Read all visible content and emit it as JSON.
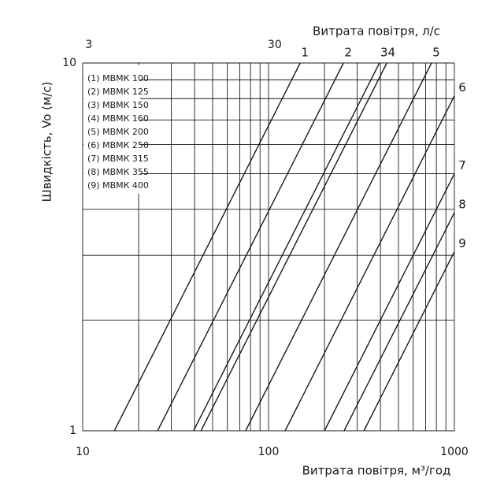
{
  "chart_data": {
    "type": "line",
    "xlabel": "Витрата повітря, м³/год",
    "ylabel": "Швидкість, Vo (м/с)",
    "x2label": "Витрата повітря, л/с",
    "xscale": "log",
    "yscale": "log",
    "xlim": [
      10,
      1000
    ],
    "ylim": [
      1,
      10
    ],
    "xticks": [
      10,
      100,
      1000
    ],
    "yticks": [
      1,
      10
    ],
    "xminor": [
      20,
      30,
      40,
      50,
      60,
      70,
      80,
      90,
      200,
      300,
      400,
      500,
      600,
      700,
      800,
      900
    ],
    "yminor": [
      2,
      3,
      4,
      5,
      6,
      7,
      8,
      9
    ],
    "x2lim": [
      2.78,
      277.8
    ],
    "x2ticks": [
      3,
      30
    ],
    "grid": true,
    "legend": [
      "(1) МВМК 100",
      "(2) МВМК 125",
      "(3) МВМК 150",
      "(4) МВМК 160",
      "(5) МВМК 200",
      "(6) МВМК 250",
      "(7) МВМК 315",
      "(8) МВМК 355",
      "(9) МВМК 400"
    ],
    "legend_position": "upper left",
    "color": "#1a1a1a",
    "series": [
      {
        "name": "1",
        "x": [
          14.8,
          148
        ],
        "values": [
          1,
          10
        ]
      },
      {
        "name": "2",
        "x": [
          25.3,
          253
        ],
        "values": [
          1,
          10
        ]
      },
      {
        "name": "3",
        "x": [
          39.5,
          395
        ],
        "values": [
          1,
          10
        ]
      },
      {
        "name": "4",
        "x": [
          43.3,
          433
        ],
        "values": [
          1,
          10
        ]
      },
      {
        "name": "5",
        "x": [
          75.3,
          753
        ],
        "values": [
          1,
          10
        ]
      },
      {
        "name": "6",
        "x": [
          122.8,
          1000
        ],
        "values": [
          1,
          8.14
        ]
      },
      {
        "name": "7",
        "x": [
          200,
          1000
        ],
        "values": [
          1,
          5
        ]
      },
      {
        "name": "8",
        "x": [
          255,
          1000
        ],
        "values": [
          1,
          3.92
        ]
      },
      {
        "name": "9",
        "x": [
          326,
          1000
        ],
        "values": [
          1,
          3.07
        ]
      }
    ]
  }
}
